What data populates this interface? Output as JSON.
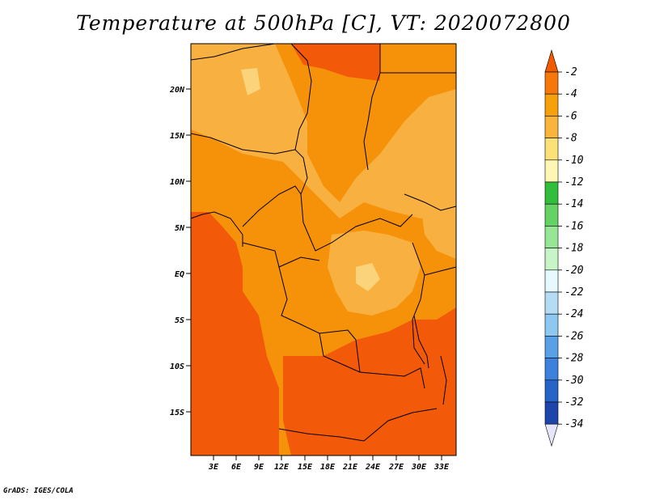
{
  "title": "Temperature at 500hPa [C], VT: 2020072800",
  "credit": "GrADS: IGES/COLA",
  "map": {
    "lat_labels": [
      "20N",
      "15N",
      "10N",
      "5N",
      "EQ",
      "5S",
      "10S",
      "15S"
    ],
    "lon_labels": [
      "3E",
      "6E",
      "9E",
      "12E",
      "15E",
      "18E",
      "21E",
      "24E",
      "27E",
      "30E",
      "33E"
    ],
    "colors": {
      "c_2_4": "#f25a0a",
      "c_4_6": "#f6920a",
      "c_6_8": "#f8b040",
      "c_8_10": "#fad37a"
    }
  },
  "colorbar": {
    "levels": [
      "-2",
      "-4",
      "-6",
      "-8",
      "-10",
      "-12",
      "-14",
      "-16",
      "-18",
      "-20",
      "-22",
      "-24",
      "-26",
      "-28",
      "-30",
      "-32",
      "-34"
    ],
    "colors": [
      "#f05a00",
      "#f6780a",
      "#f6a00a",
      "#f8b43c",
      "#fce078",
      "#fdf6b4",
      "#32be3c",
      "#64d264",
      "#96e696",
      "#c8f5c8",
      "#e6f9ff",
      "#b4dcf5",
      "#8cc8f0",
      "#5aa0e6",
      "#3c82dc",
      "#2864c8",
      "#1e46aa",
      "#0a1e78",
      "#e6e6fa"
    ]
  }
}
